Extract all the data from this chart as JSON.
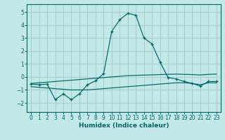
{
  "xlabel": "Humidex (Indice chaleur)",
  "background_color": "#c2e8e8",
  "grid_color": "#a8d0d0",
  "line_color": "#006666",
  "xlim": [
    -0.5,
    23.5
  ],
  "ylim": [
    -2.7,
    5.6
  ],
  "yticks": [
    -2,
    -1,
    0,
    1,
    2,
    3,
    4,
    5
  ],
  "xticks": [
    0,
    1,
    2,
    3,
    4,
    5,
    6,
    7,
    8,
    9,
    10,
    11,
    12,
    13,
    14,
    15,
    16,
    17,
    18,
    19,
    20,
    21,
    22,
    23
  ],
  "series1_x": [
    0,
    1,
    2,
    3,
    4,
    5,
    6,
    7,
    8,
    9,
    10,
    11,
    12,
    13,
    14,
    15,
    16,
    17,
    18,
    19,
    20,
    21,
    22,
    23
  ],
  "series1_y": [
    -0.55,
    -0.6,
    -0.55,
    -1.75,
    -1.3,
    -1.75,
    -1.3,
    -0.6,
    -0.3,
    0.25,
    3.5,
    4.4,
    4.9,
    4.75,
    3.0,
    2.55,
    1.15,
    -0.05,
    -0.15,
    -0.35,
    -0.5,
    -0.7,
    -0.35,
    -0.35
  ],
  "series2_x": [
    0,
    1,
    2,
    3,
    4,
    5,
    6,
    7,
    8,
    9,
    10,
    11,
    12,
    13,
    14,
    15,
    16,
    17,
    18,
    19,
    20,
    21,
    22,
    23
  ],
  "series2_y": [
    -0.5,
    -0.45,
    -0.4,
    -0.35,
    -0.3,
    -0.25,
    -0.2,
    -0.15,
    -0.1,
    -0.05,
    0.0,
    0.05,
    0.1,
    0.12,
    0.14,
    0.16,
    0.18,
    0.2,
    0.22,
    0.2,
    0.18,
    0.15,
    0.2,
    0.22
  ],
  "series3_x": [
    0,
    1,
    2,
    3,
    4,
    5,
    6,
    7,
    8,
    9,
    10,
    11,
    12,
    13,
    14,
    15,
    16,
    17,
    18,
    19,
    20,
    21,
    22,
    23
  ],
  "series3_y": [
    -0.75,
    -0.8,
    -0.85,
    -0.9,
    -0.95,
    -1.0,
    -1.0,
    -1.0,
    -0.95,
    -0.9,
    -0.85,
    -0.8,
    -0.75,
    -0.7,
    -0.65,
    -0.6,
    -0.55,
    -0.5,
    -0.45,
    -0.45,
    -0.5,
    -0.6,
    -0.45,
    -0.45
  ]
}
